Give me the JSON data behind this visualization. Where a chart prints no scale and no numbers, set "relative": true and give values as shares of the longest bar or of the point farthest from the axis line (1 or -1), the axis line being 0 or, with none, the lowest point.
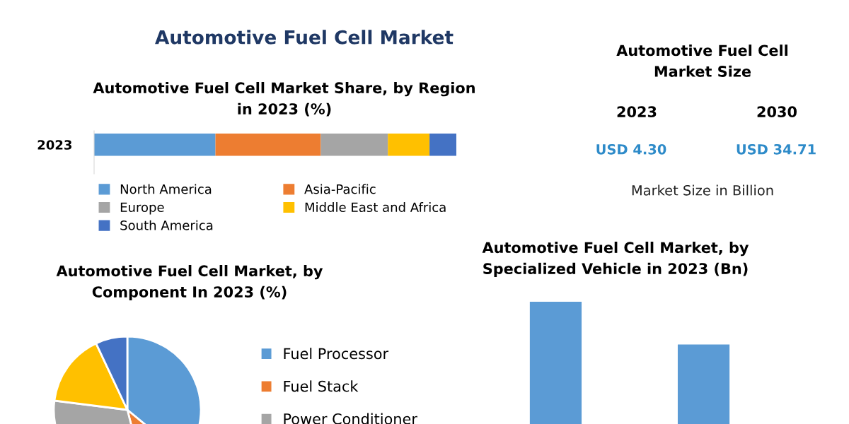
{
  "chart_data": [
    {
      "type": "bar",
      "orientation": "horizontal",
      "stacked": true,
      "relative": true,
      "legend": "bottom",
      "title": "Automotive Fuel Cell Market Share, by Region\nin 2023 (%)",
      "annotations": [
        "Automotive Fuel Cell Market"
      ],
      "categories": [
        "2023"
      ],
      "series": [
        {
          "name": "North America",
          "color": "#5b9bd5",
          "values": [
            0.335
          ]
        },
        {
          "name": "Asia-Pacific",
          "color": "#ed7d31",
          "values": [
            0.291
          ]
        },
        {
          "name": "Europe",
          "color": "#a5a5a5",
          "values": [
            0.185
          ]
        },
        {
          "name": "Middle East and Africa",
          "color": "#ffc000",
          "values": [
            0.115
          ]
        },
        {
          "name": "South America",
          "color": "#4472c4",
          "values": [
            0.074
          ]
        }
      ]
    },
    {
      "type": "pie",
      "legend": "right",
      "title": "Automotive Fuel Cell Market, by\nComponent In 2023 (%)",
      "categories": [
        "Fuel Processor",
        "Fuel Stack",
        "Power Conditioner",
        null,
        null
      ],
      "values": [
        36,
        10,
        31,
        16,
        7
      ],
      "colors": [
        "#5b9bd5",
        "#ed7d31",
        "#a5a5a5",
        "#ffc000",
        "#4472c4"
      ]
    },
    {
      "type": "bar",
      "relative": true,
      "title": "Automotive Fuel Cell Market, by\nSpecialized Vehicle in 2023 (Bn)",
      "categories": [
        null,
        null
      ],
      "values": [
        1,
        0.65
      ],
      "color": "#5b9bd5"
    },
    {
      "type": "other",
      "title": "Automotive Fuel Cell\nMarket Size",
      "annotations": [
        "2023",
        "2030",
        "USD 4.30",
        "USD 34.71",
        "Market Size in Billion"
      ]
    }
  ]
}
